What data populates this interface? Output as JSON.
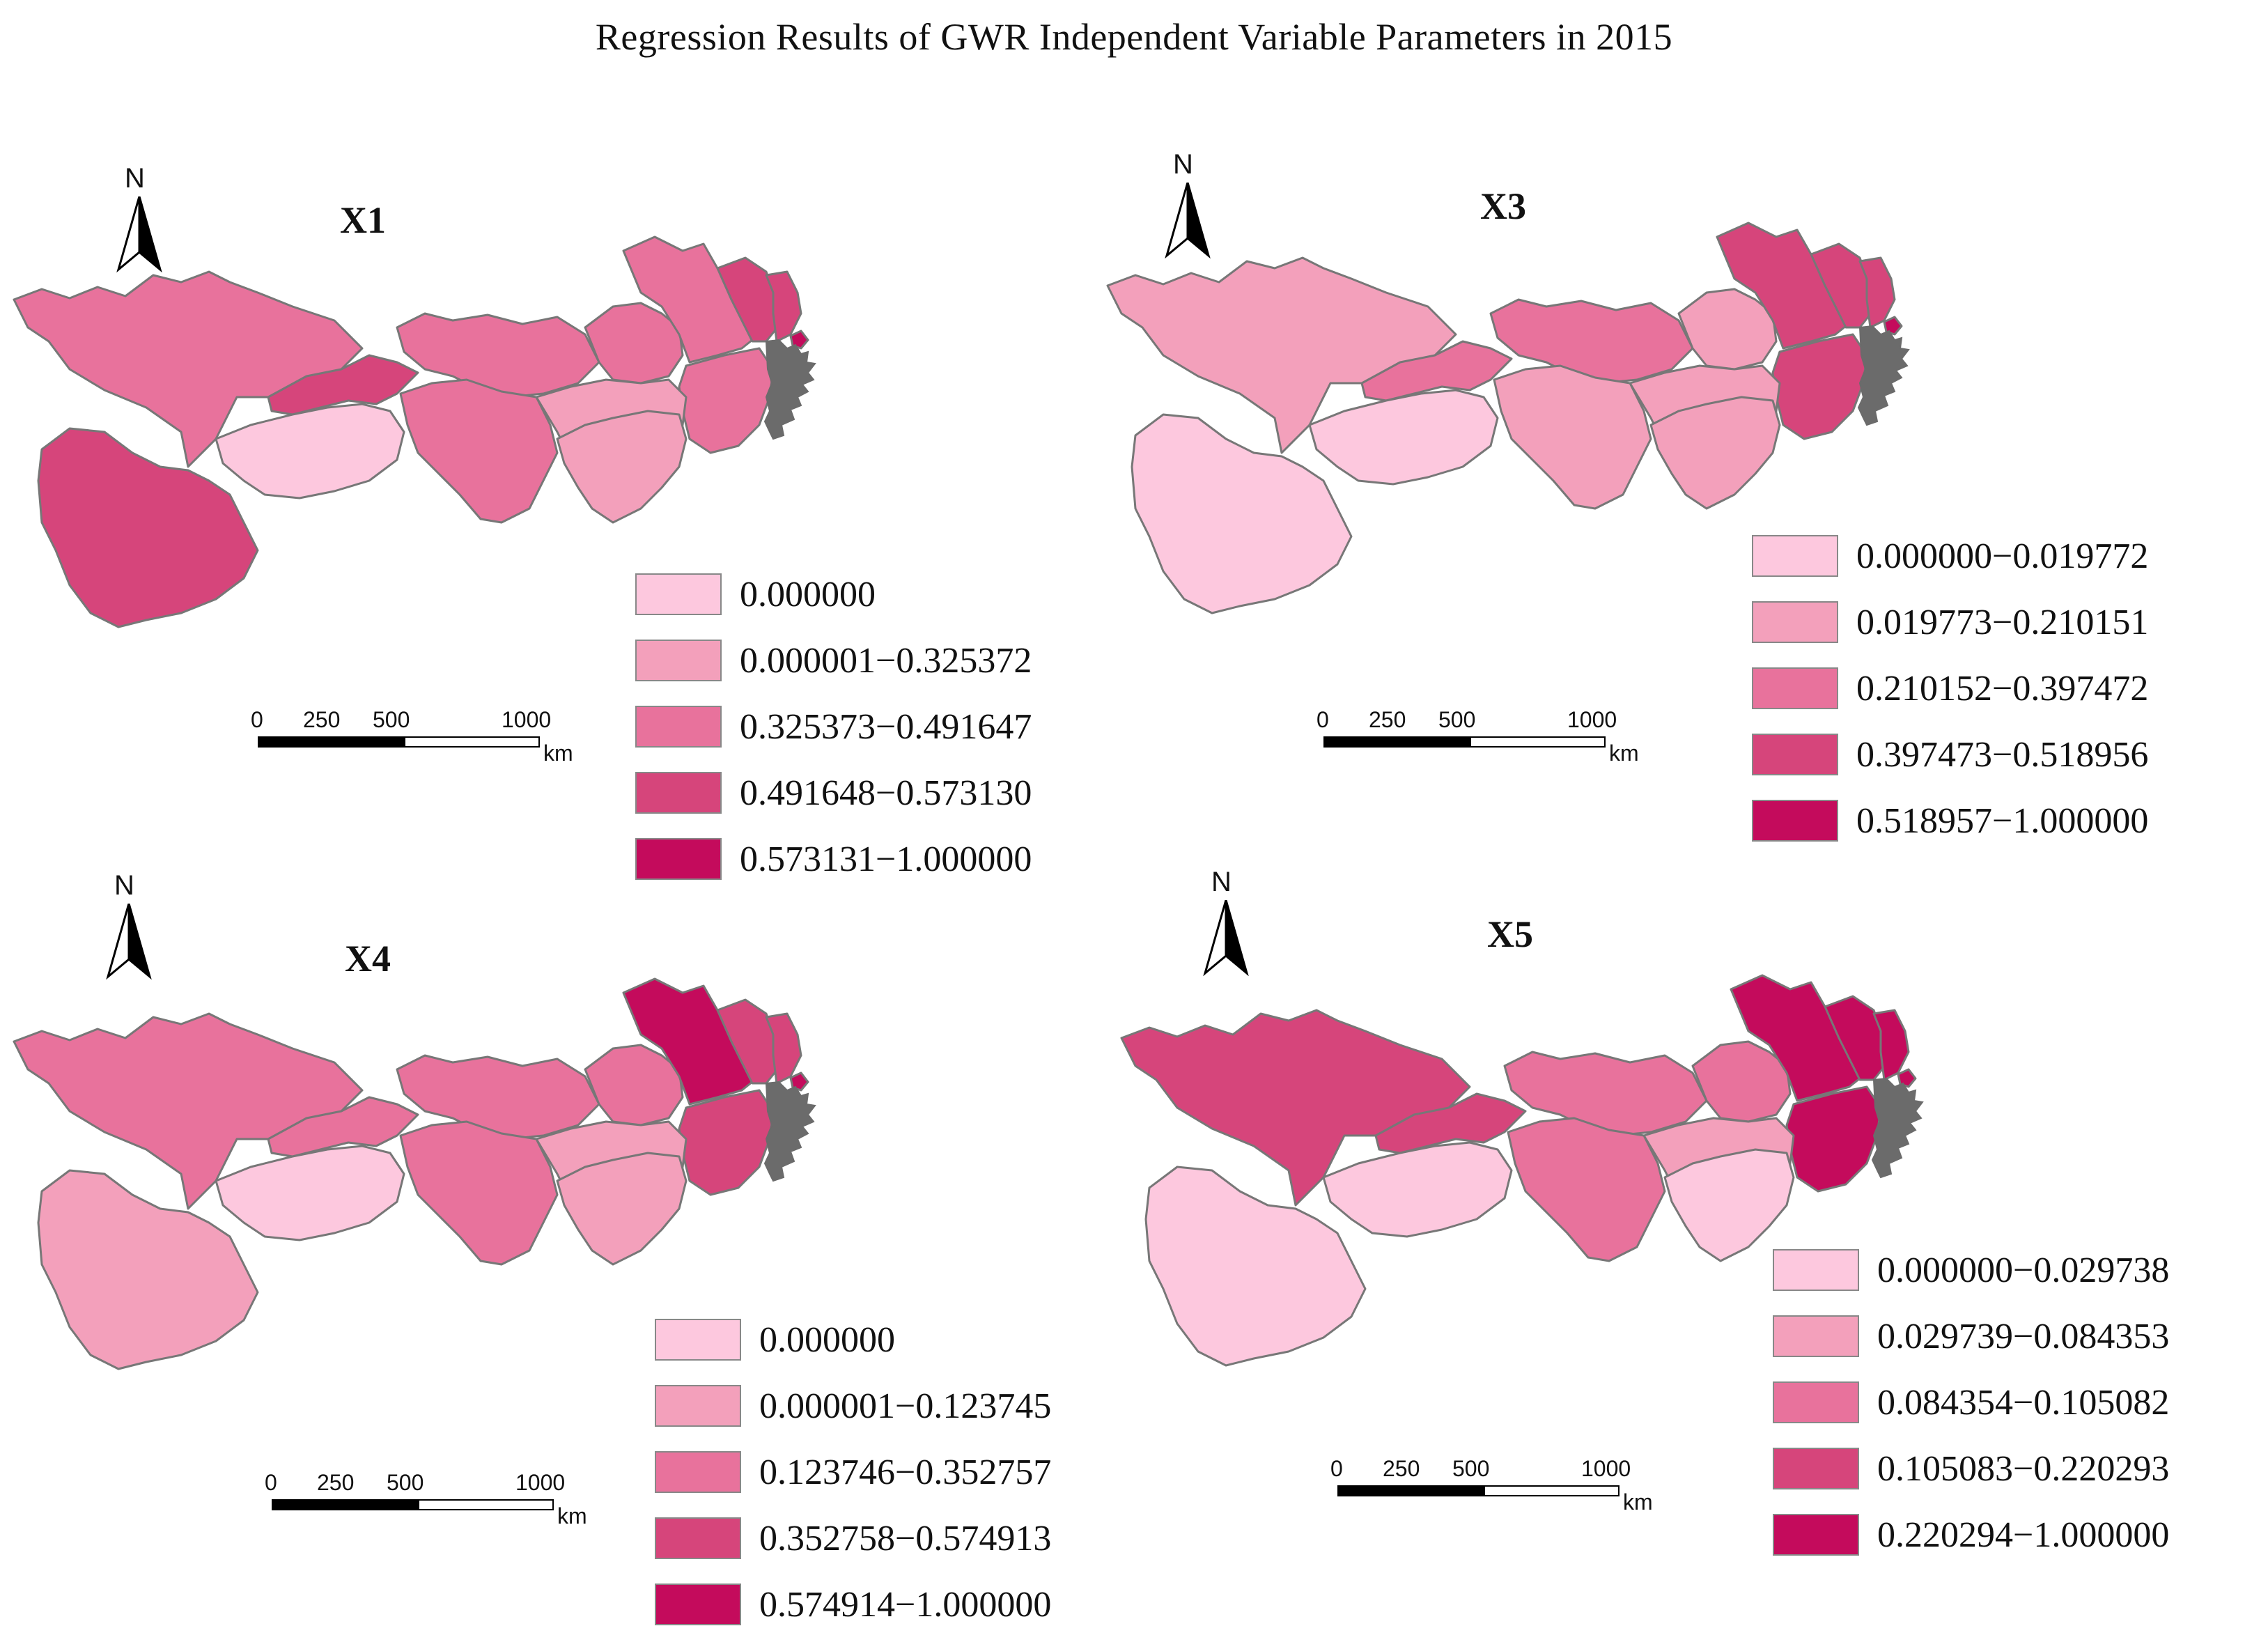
{
  "title": "Regression Results of GWR Independent Variable Parameters in 2015",
  "colors": {
    "c1": "#fdc8de",
    "c2": "#f3a0bb",
    "c3": "#e8729c",
    "c4": "#d6457b",
    "c5": "#c40b5c",
    "outline": "#777777",
    "coast": "#6b6b6b"
  },
  "scale_bar": {
    "ticks": [
      "0",
      "250",
      "500",
      "1000"
    ],
    "unit": "km"
  },
  "north_label": "N",
  "panels": [
    {
      "id": "X1",
      "label": "X1",
      "legend": [
        "0.000000",
        "0.000001−0.325372",
        "0.325373−0.491647",
        "0.491648−0.573130",
        "0.573131−1.000000"
      ],
      "region_classes": [
        3,
        3,
        4,
        3,
        3,
        3,
        2,
        1,
        4,
        3,
        2,
        4,
        4,
        5
      ]
    },
    {
      "id": "X3",
      "label": "X3",
      "legend": [
        "0.000000−0.019772",
        "0.019773−0.210151",
        "0.210152−0.397472",
        "0.397473−0.518956",
        "0.518957−1.000000"
      ],
      "region_classes": [
        2,
        3,
        3,
        2,
        4,
        4,
        2,
        1,
        1,
        2,
        2,
        4,
        4,
        5
      ]
    },
    {
      "id": "X4",
      "label": "X4",
      "legend": [
        "0.000000",
        "0.000001−0.123745",
        "0.123746−0.352757",
        "0.352758−0.574913",
        "0.574914−1.000000"
      ],
      "region_classes": [
        3,
        3,
        3,
        3,
        5,
        4,
        2,
        1,
        2,
        3,
        2,
        4,
        4,
        5
      ]
    },
    {
      "id": "X5",
      "label": "X5",
      "legend": [
        "0.000000−0.029738",
        "0.029739−0.084353",
        "0.084354−0.105082",
        "0.105083−0.220293",
        "0.220294−1.000000"
      ],
      "region_classes": [
        4,
        3,
        4,
        3,
        5,
        5,
        2,
        1,
        1,
        3,
        1,
        5,
        5,
        5
      ]
    }
  ]
}
